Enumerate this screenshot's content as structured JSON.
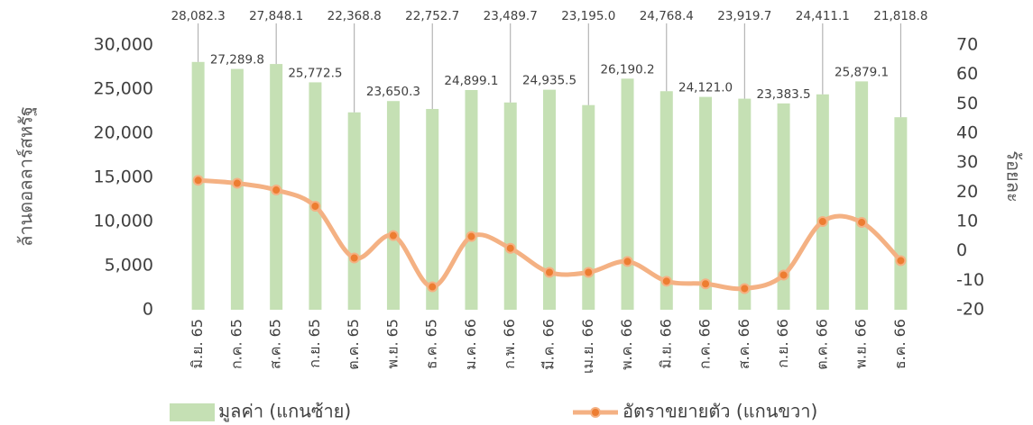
{
  "chart_data": {
    "type": "bar_line",
    "categories": [
      "มิ.ย. 65",
      "ก.ค. 65",
      "ส.ค. 65",
      "ก.ย. 65",
      "ต.ค. 65",
      "พ.ย. 65",
      "ธ.ค. 65",
      "ม.ค. 66",
      "ก.พ. 66",
      "มี.ค. 66",
      "เม.ย. 66",
      "พ.ค. 66",
      "มิ.ย. 66",
      "ก.ค. 66",
      "ส.ค. 66",
      "ก.ย. 66",
      "ต.ค. 66",
      "พ.ย. 66",
      "ธ.ค. 66"
    ],
    "series": [
      {
        "name": "มูลค่า (แกนซ้าย)",
        "type": "bar",
        "color": "#c5e0b4",
        "values": [
          28082.3,
          27289.8,
          27848.1,
          25772.5,
          22368.8,
          23650.3,
          22752.7,
          24899.1,
          23489.7,
          24935.5,
          23195.0,
          26190.2,
          24768.4,
          24121.0,
          23919.7,
          23383.5,
          24411.1,
          25879.1,
          21818.8
        ],
        "value_labels": [
          "28,082.3",
          "27,289.8",
          "27,848.1",
          "25,772.5",
          "22,368.8",
          "23,650.3",
          "22,752.7",
          "24,899.1",
          "23,489.7",
          "24,935.5",
          "23,195.0",
          "26,190.2",
          "24,768.4",
          "24,121.0",
          "23,919.7",
          "23,383.5",
          "24,411.1",
          "25,879.1",
          "21,818.8"
        ]
      },
      {
        "name": "อัตราขยายตัว (แกนขวา)",
        "type": "line",
        "axis": "y2",
        "color": "#f4b183",
        "marker_color": "#ed7d31",
        "values": [
          24,
          23,
          20.7,
          15.2,
          -2.4,
          5.2,
          -12.2,
          4.9,
          0.9,
          -7.3,
          -7.3,
          -3.6,
          -10.3,
          -11.2,
          -12.8,
          -8.2,
          10,
          9.7,
          -3.3
        ]
      }
    ],
    "ylabel": "ล้านดอลลาร์สหรัฐ",
    "y2label": "ร้อยละ",
    "ylim": [
      0,
      30000
    ],
    "yticks": [
      0,
      {
        "value": 5000,
        "label": "5,000"
      },
      {
        "value": 10000,
        "label": "10,000"
      },
      {
        "value": 15000,
        "label": "15,000"
      },
      {
        "value": 20000,
        "label": "20,000"
      },
      {
        "value": 25000,
        "label": "25,000"
      },
      {
        "value": 30000,
        "label": "30,000"
      }
    ],
    "y2lim": [
      -20,
      70
    ],
    "y2ticks": [
      -20,
      -10,
      0,
      10,
      20,
      30,
      40,
      50,
      60,
      70
    ],
    "grid": false,
    "legend": "bottom"
  }
}
